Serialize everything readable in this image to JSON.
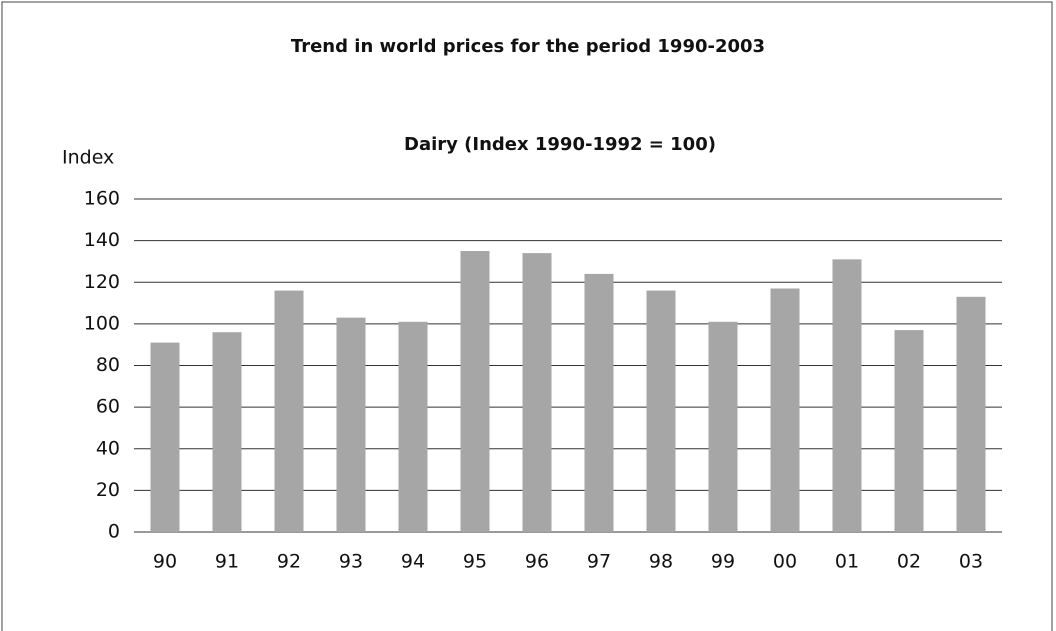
{
  "chart_data": {
    "type": "bar",
    "title": "Trend in world prices for the period 1990-2003",
    "subtitle": "Dairy (Index 1990-1992 = 100)",
    "y_label": "Index",
    "categories": [
      "90",
      "91",
      "92",
      "93",
      "94",
      "95",
      "96",
      "97",
      "98",
      "99",
      "00",
      "01",
      "02",
      "03"
    ],
    "values": [
      91,
      96,
      116,
      103,
      101,
      135,
      134,
      124,
      116,
      101,
      117,
      131,
      97,
      113
    ],
    "color": "#a6a6a6",
    "ylim": [
      0,
      160
    ],
    "yticks": [
      0,
      20,
      40,
      60,
      80,
      100,
      120,
      140,
      160
    ],
    "grid": true
  }
}
